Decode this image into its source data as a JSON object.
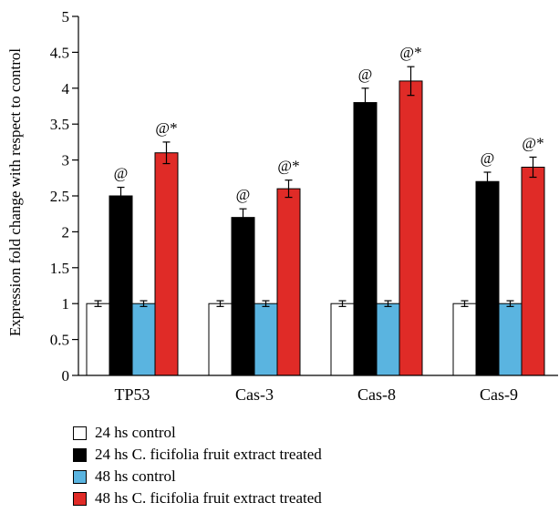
{
  "chart_data": {
    "type": "bar",
    "ylabel": "Expression fold change with respect to control",
    "ylim": [
      0,
      5
    ],
    "yticks": [
      "0",
      "0.5",
      "1",
      "1.5",
      "2",
      "2.5",
      "3",
      "3.5",
      "4",
      "4.5",
      "5"
    ],
    "categories": [
      "TP53",
      "Cas-3",
      "Cas-8",
      "Cas-9"
    ],
    "legend_placement": "bottom",
    "series": [
      {
        "name": "24 hs control",
        "color": "#ffffff",
        "values": [
          1.0,
          1.0,
          1.0,
          1.0
        ],
        "errors": [
          0.04,
          0.04,
          0.04,
          0.04
        ],
        "annotations": [
          "",
          "",
          "",
          ""
        ]
      },
      {
        "name": "24 hs C. ficifolia fruit extract treated",
        "color": "#000000",
        "values": [
          2.5,
          2.2,
          3.8,
          2.7
        ],
        "errors": [
          0.12,
          0.12,
          0.2,
          0.13
        ],
        "annotations": [
          "@",
          "@",
          "@",
          "@"
        ]
      },
      {
        "name": "48 hs control",
        "color": "#5ab4e0",
        "values": [
          1.0,
          1.0,
          1.0,
          1.0
        ],
        "errors": [
          0.04,
          0.04,
          0.04,
          0.04
        ],
        "annotations": [
          "",
          "",
          "",
          ""
        ]
      },
      {
        "name": "48 hs C. ficifolia fruit extract treated",
        "color": "#e02b27",
        "values": [
          3.1,
          2.6,
          4.1,
          2.9
        ],
        "errors": [
          0.15,
          0.12,
          0.2,
          0.14
        ],
        "annotations": [
          "@*",
          "@*",
          "@*",
          "@*"
        ]
      }
    ]
  }
}
